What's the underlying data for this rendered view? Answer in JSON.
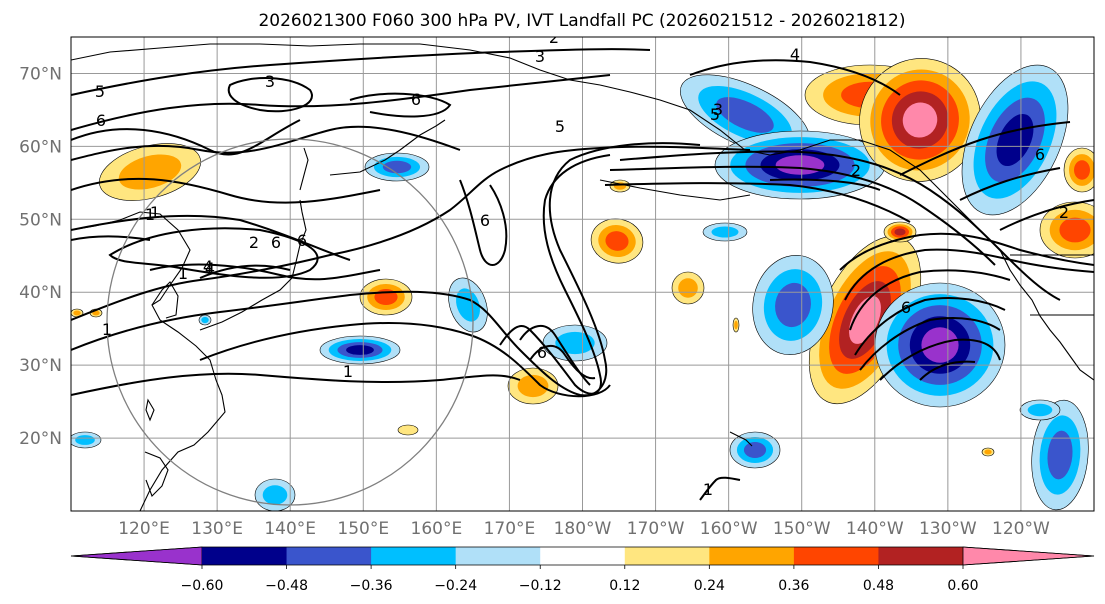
{
  "title": "2026021300 F060 300 hPa PV, IVT Landfall PC (2026021512 - 2026021812)",
  "map": {
    "projection": "PlateCarree",
    "lon_range": [
      110,
      250
    ],
    "lat_range": [
      10,
      75
    ],
    "lat_ticks": [
      {
        "value": 20,
        "label": "20°N"
      },
      {
        "value": 30,
        "label": "30°N"
      },
      {
        "value": 40,
        "label": "40°N"
      },
      {
        "value": 50,
        "label": "50°N"
      },
      {
        "value": 60,
        "label": "60°N"
      },
      {
        "value": 70,
        "label": "70°N"
      }
    ],
    "lon_ticks": [
      {
        "value": 120,
        "label": "120°E"
      },
      {
        "value": 130,
        "label": "130°E"
      },
      {
        "value": 140,
        "label": "140°E"
      },
      {
        "value": 150,
        "label": "150°E"
      },
      {
        "value": 160,
        "label": "160°E"
      },
      {
        "value": 170,
        "label": "170°E"
      },
      {
        "value": 180,
        "label": "180°W"
      },
      {
        "value": 190,
        "label": "170°W"
      },
      {
        "value": 200,
        "label": "160°W"
      },
      {
        "value": 210,
        "label": "150°W"
      },
      {
        "value": 220,
        "label": "140°W"
      },
      {
        "value": 230,
        "label": "130°W"
      },
      {
        "value": 240,
        "label": "120°W"
      }
    ],
    "grid_color": "#999999",
    "circle_color": "#808080"
  },
  "colorbar": {
    "levels": [
      "−0.60",
      "−0.48",
      "−0.36",
      "−0.24",
      "−0.12",
      "0.12",
      "0.24",
      "0.36",
      "0.48",
      "0.60"
    ],
    "colors": [
      "#9932cc",
      "#00008b",
      "#3a55cc",
      "#00bfff",
      "#b0e0f8",
      "#ffffff",
      "#ffe680",
      "#ffa500",
      "#ff4500",
      "#b22222",
      "#ff88aa"
    ],
    "extend": "both"
  },
  "contour_labels": [
    "2",
    "3",
    "5",
    "6",
    "3",
    "6",
    "6",
    "5",
    "1",
    "2",
    "6",
    "6",
    "4",
    "1",
    "6",
    "5",
    "1",
    "1",
    "4",
    "3",
    "6",
    "2",
    "6",
    "1",
    "1",
    "4",
    "2"
  ],
  "chart_data": {
    "type": "map",
    "title": "2026021300 F060 300 hPa PV, IVT Landfall PC (2026021512 - 2026021812)",
    "fields": [
      "300 hPa PV (contours, PVU)",
      "IVT Landfall PC (shaded)"
    ],
    "shading_levels": [
      -0.6,
      -0.48,
      -0.36,
      -0.24,
      -0.12,
      0.12,
      0.24,
      0.36,
      0.48,
      0.6
    ]
  }
}
